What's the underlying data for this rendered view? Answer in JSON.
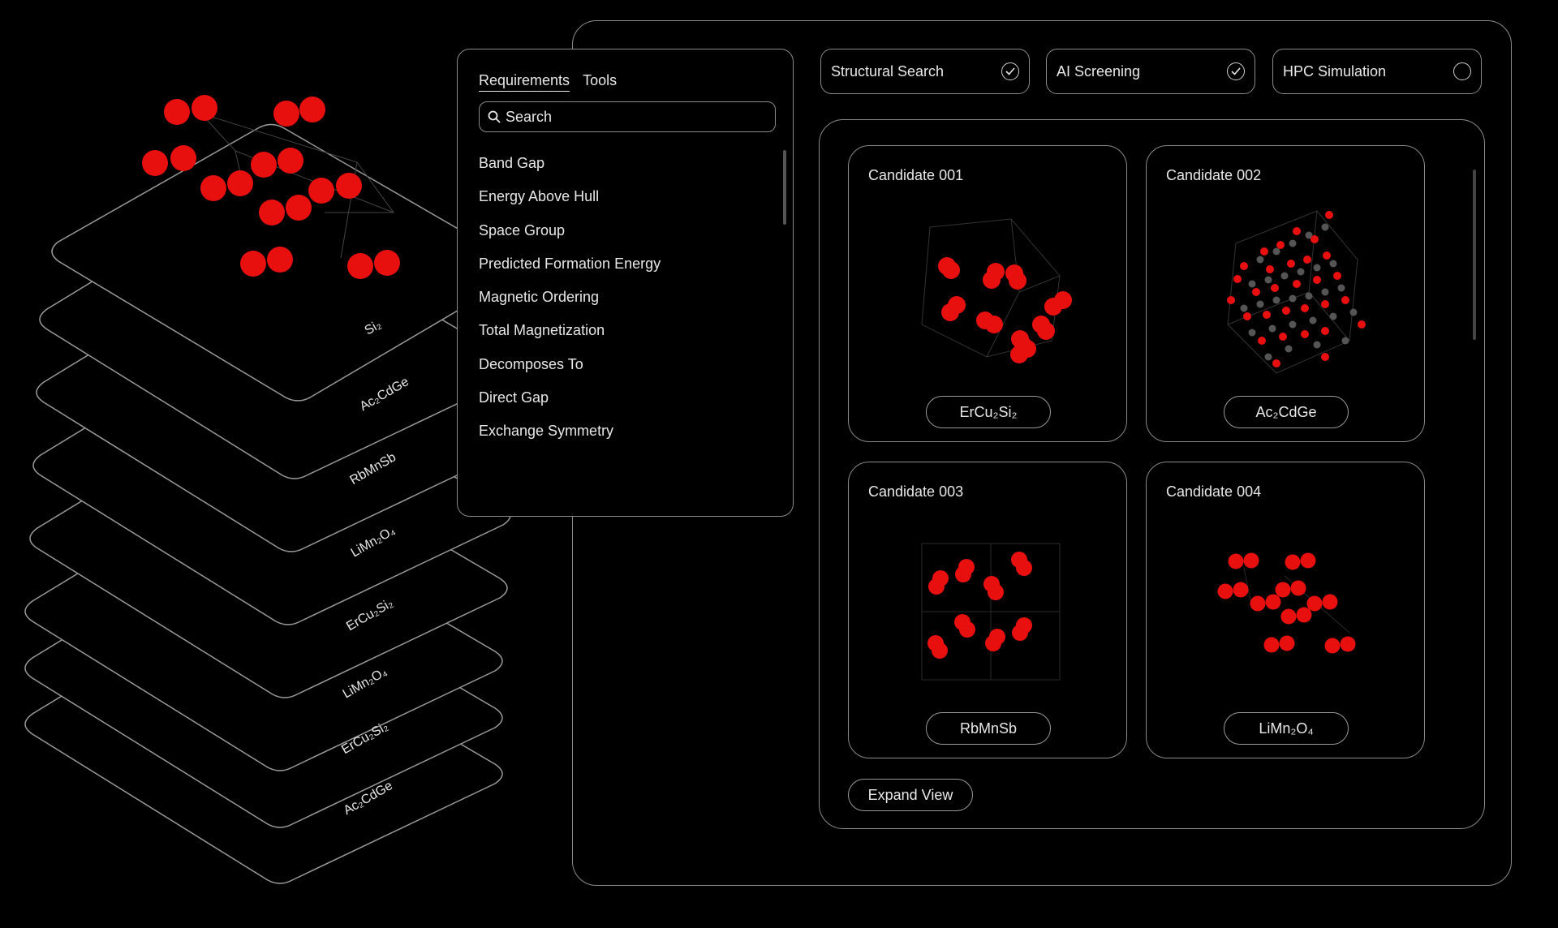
{
  "stack": {
    "labels": [
      "Si₂",
      "Ac₂CdGe",
      "RbMnSb",
      "LiMn₂O₄",
      "ErCu₂Si₂",
      "LiMn₂O₄",
      "ErCu₂Si₂",
      "Ac₂CdGe"
    ]
  },
  "requirements": {
    "tabs": [
      "Requirements",
      "Tools"
    ],
    "search_value": "Search",
    "items": [
      "Band Gap",
      "Energy Above Hull",
      "Space Group",
      "Predicted Formation Energy",
      "Magnetic Ordering",
      "Total Magnetization",
      "Decomposes To",
      "Direct Gap",
      "Exchange Symmetry"
    ]
  },
  "toggles": [
    {
      "label": "Structural Search",
      "checked": true
    },
    {
      "label": "AI Screening",
      "checked": true
    },
    {
      "label": "HPC Simulation",
      "checked": false
    }
  ],
  "candidates": [
    {
      "title": "Candidate 001",
      "formula": "ErCu₂Si₂"
    },
    {
      "title": "Candidate 002",
      "formula": "Ac₂CdGe"
    },
    {
      "title": "Candidate 003",
      "formula": "RbMnSb"
    },
    {
      "title": "Candidate 004",
      "formula": "LiMn₂O₄"
    }
  ],
  "expand_label": "Expand View",
  "colors": {
    "atom": "#e8100f",
    "atom_dark": "#4a4a4a",
    "border": "#8a8a8a",
    "background": "#000000"
  }
}
